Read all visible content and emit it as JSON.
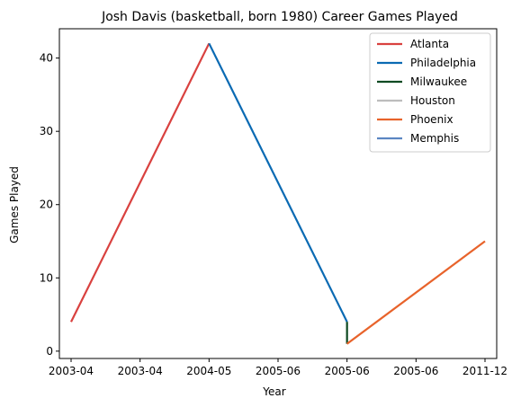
{
  "chart_data": {
    "type": "line",
    "title": "Josh Davis (basketball, born 1980) Career Games Played",
    "xlabel": "Year",
    "ylabel": "Games Played",
    "x_tick_labels": [
      "2003-04",
      "2003-04",
      "2004-05",
      "2005-06",
      "2005-06",
      "2005-06",
      "2011-12"
    ],
    "y_ticks": [
      0,
      10,
      20,
      30,
      40
    ],
    "ylim": [
      -1,
      44
    ],
    "legend_position": "top-right",
    "grid": false,
    "series": [
      {
        "name": "Atlanta",
        "color": "#d9413f",
        "points": [
          {
            "x": 0,
            "y": 4
          },
          {
            "x": 2,
            "y": 42
          }
        ]
      },
      {
        "name": "Philadelphia",
        "color": "#0a6ab3",
        "points": [
          {
            "x": 2,
            "y": 42
          },
          {
            "x": 4,
            "y": 4
          }
        ]
      },
      {
        "name": "Milwaukee",
        "color": "#0e4a22",
        "points": [
          {
            "x": 4,
            "y": 4
          },
          {
            "x": 4,
            "y": 1
          }
        ]
      },
      {
        "name": "Houston",
        "color": "#bdbdbd",
        "points": [
          {
            "x": 4,
            "y": 1
          },
          {
            "x": 4,
            "y": 1
          }
        ]
      },
      {
        "name": "Phoenix",
        "color": "#e8632b",
        "points": [
          {
            "x": 4,
            "y": 1
          },
          {
            "x": 6,
            "y": 15
          }
        ]
      },
      {
        "name": "Memphis",
        "color": "#5b86c2",
        "points": [
          {
            "x": 6,
            "y": 15
          },
          {
            "x": 6,
            "y": 15
          }
        ]
      }
    ]
  }
}
